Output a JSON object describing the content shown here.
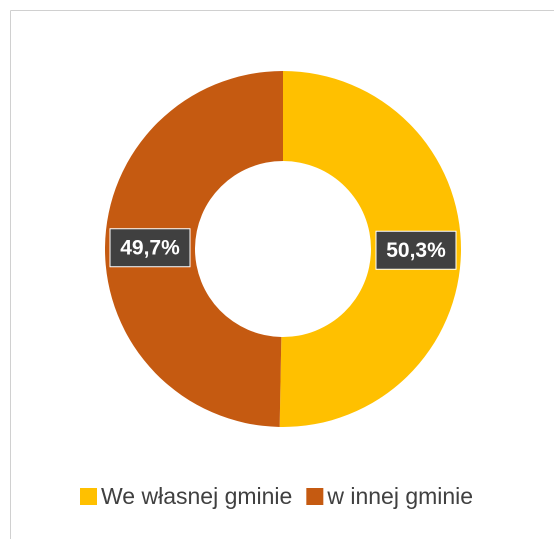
{
  "chart_data": {
    "type": "donut",
    "categories": [
      "We własnej gminie",
      "w innej gminie"
    ],
    "values": [
      50.3,
      49.7
    ],
    "value_labels": [
      "50,3%",
      "49,7%"
    ],
    "colors": [
      "#FFC000",
      "#C55A11"
    ],
    "legend": "bottom"
  }
}
